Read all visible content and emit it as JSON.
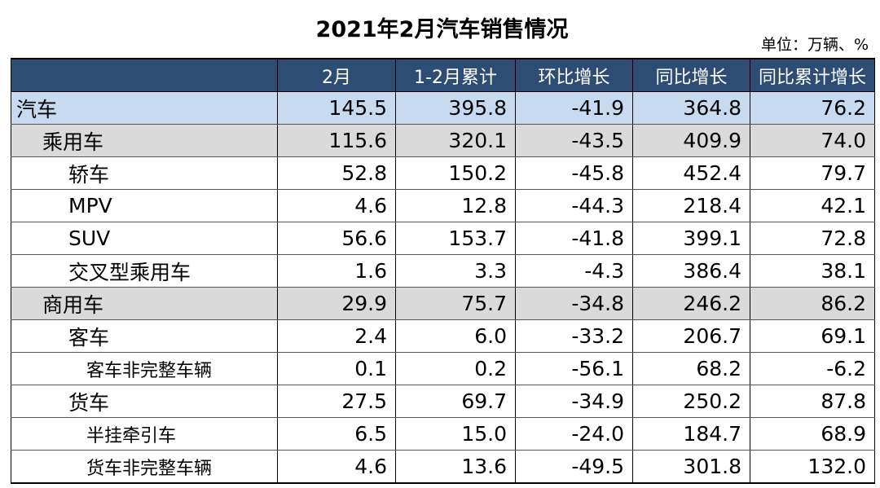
{
  "title": "2021年2月汽车销售情况",
  "unit": "单位：万辆、%",
  "headers": [
    "",
    "2月",
    "1-2月累计",
    "环比增长",
    "同比增长",
    "同比累计增长"
  ],
  "rows": [
    {
      "name": "汽车",
      "level": 0,
      "values": [
        "145.5",
        "395.8",
        "-41.9",
        "364.8",
        "76.2"
      ]
    },
    {
      "name": "乘用车",
      "level": 1,
      "values": [
        "115.6",
        "320.1",
        "-43.5",
        "409.9",
        "74.0"
      ]
    },
    {
      "name": "轿车",
      "level": 2,
      "values": [
        "52.8",
        "150.2",
        "-45.8",
        "452.4",
        "79.7"
      ]
    },
    {
      "name": "MPV",
      "level": 2,
      "values": [
        "4.6",
        "12.8",
        "-44.3",
        "218.4",
        "42.1"
      ]
    },
    {
      "name": "SUV",
      "level": 2,
      "values": [
        "56.6",
        "153.7",
        "-41.8",
        "399.1",
        "72.8"
      ]
    },
    {
      "name": "交叉型乘用车",
      "level": 2,
      "values": [
        "1.6",
        "3.3",
        "-4.3",
        "386.4",
        "38.1"
      ]
    },
    {
      "name": "商用车",
      "level": 1,
      "values": [
        "29.9",
        "75.7",
        "-34.8",
        "246.2",
        "86.2"
      ]
    },
    {
      "name": "客车",
      "level": 2,
      "values": [
        "2.4",
        "6.0",
        "-33.2",
        "206.7",
        "69.1"
      ]
    },
    {
      "name": "客车非完整车辆",
      "level": 3,
      "values": [
        "0.1",
        "0.2",
        "-56.1",
        "68.2",
        "-6.2"
      ]
    },
    {
      "name": "货车",
      "level": 2,
      "values": [
        "27.5",
        "69.7",
        "-34.9",
        "250.2",
        "87.8"
      ]
    },
    {
      "name": "半挂牵引车",
      "level": 3,
      "values": [
        "6.5",
        "15.0",
        "-24.0",
        "184.7",
        "68.9"
      ]
    },
    {
      "name": "货车非完整车辆",
      "level": 3,
      "values": [
        "4.6",
        "13.6",
        "-49.5",
        "301.8",
        "132.0"
      ]
    }
  ]
}
